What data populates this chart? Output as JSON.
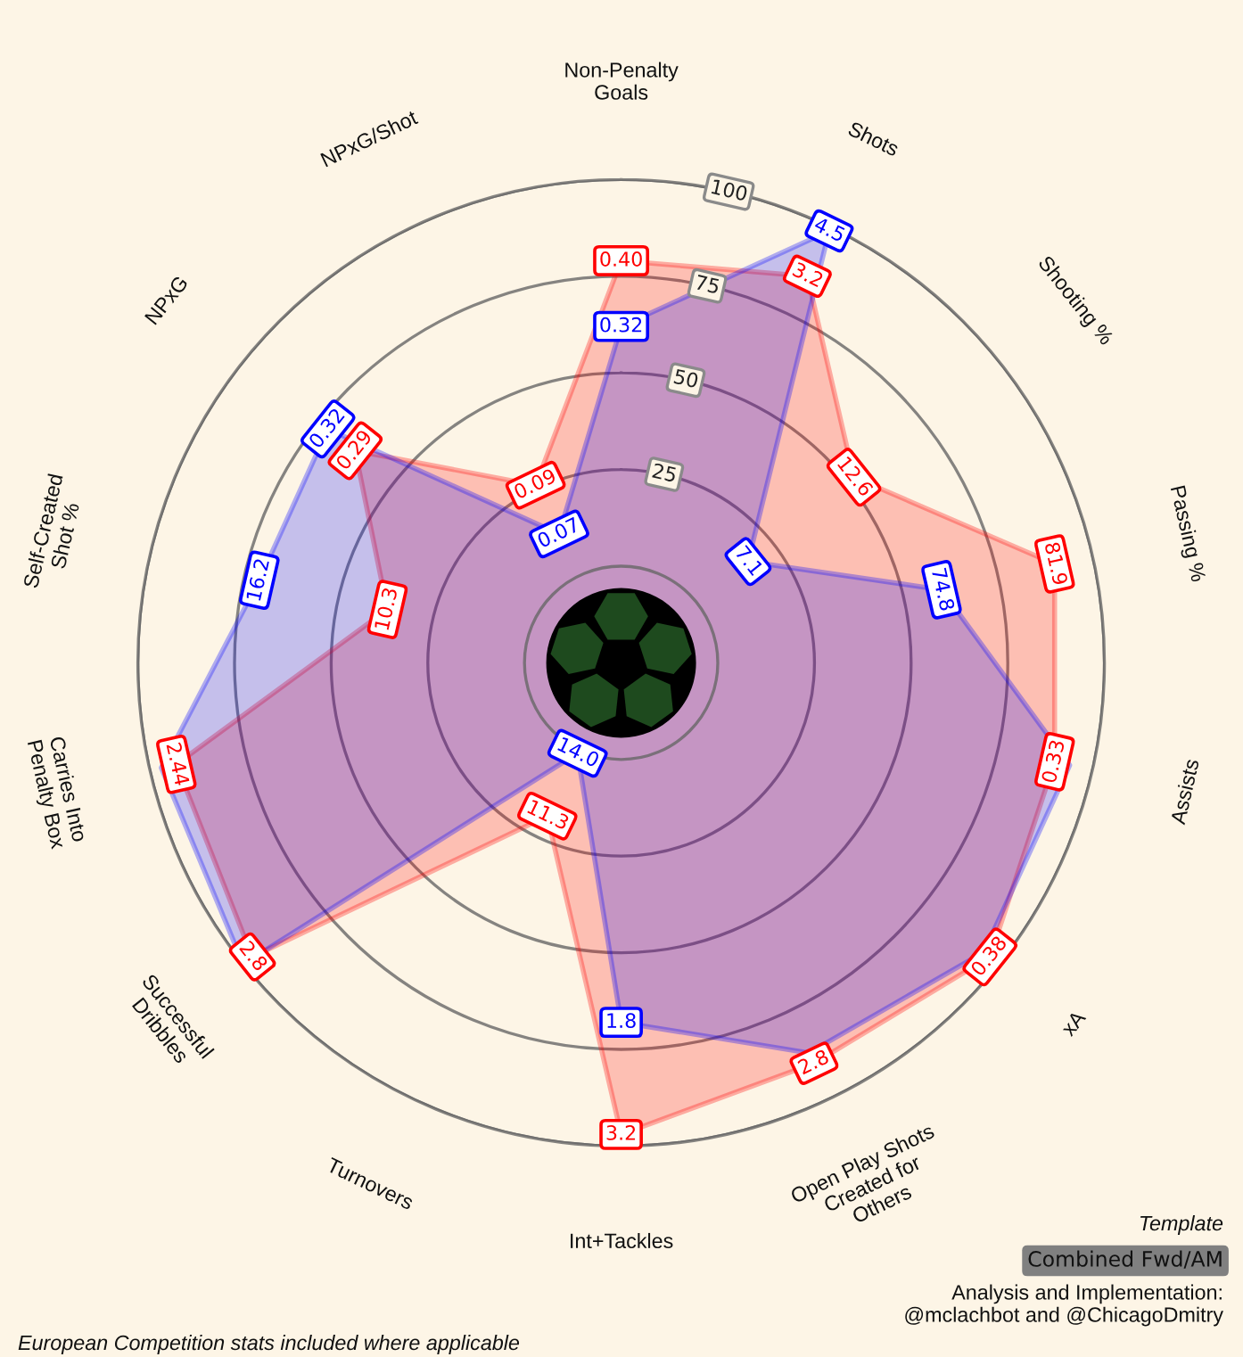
{
  "chart_data": {
    "type": "radar",
    "categories": [
      "Non-Penalty\nGoals",
      "Shots",
      "Shooting %",
      "Passing %",
      "Assists",
      "xA",
      "Open Play Shots\nCreated for\nOthers",
      "Int+Tackles",
      "Turnovers",
      "Successful\nDribbles",
      "Carries Into\nPenalty Box",
      "Self-Created\nShot %",
      "NPxG",
      "NPxG/Shot"
    ],
    "series": [
      {
        "color": "#ff0000",
        "values": [
          79,
          86,
          52,
          90,
          90,
          97,
          90,
          97,
          19,
          97,
          93,
          37,
          63,
          26
        ]
      },
      {
        "color": "#0000ff",
        "values": [
          62,
          99,
          17,
          60,
          94,
          95,
          87,
          68,
          1,
          100,
          97,
          71,
          72,
          12
        ]
      }
    ],
    "ylim": [
      -25,
      100
    ],
    "yticks": [
      25,
      50,
      75,
      100
    ],
    "grid": "y",
    "annotations": [
      {
        "text": "0.40",
        "x": "Non-Penalty\nGoals"
      },
      {
        "text": "3.2",
        "x": "Shots"
      },
      {
        "text": "12.6",
        "x": "Shooting %"
      },
      {
        "text": "81.9",
        "x": "Passing %"
      },
      {
        "text": "0.33",
        "x": "Assists"
      },
      {
        "text": "0.38",
        "x": "xA"
      },
      {
        "text": "2.8",
        "x": "Open Play Shots\nCreated for\nOthers"
      },
      {
        "text": "3.2",
        "x": "Int+Tackles"
      },
      {
        "text": "11.3",
        "x": "Turnovers"
      },
      {
        "text": "2.8",
        "x": "Successful\nDribbles"
      },
      {
        "text": "2.44",
        "x": "Carries Into\nPenalty Box"
      },
      {
        "text": "10.3",
        "x": "Self-Created\nShot %"
      },
      {
        "text": "0.29",
        "x": "NPxG"
      },
      {
        "text": "0.09",
        "x": "NPxG/Shot"
      },
      {
        "text": "0.32",
        "x": "Non-Penalty\nGoals"
      },
      {
        "text": "4.5",
        "x": "Shots"
      },
      {
        "text": "7.1",
        "x": "Shooting %"
      },
      {
        "text": "74.8",
        "x": "Passing %"
      },
      {
        "text": "1.8",
        "x": "Int+Tackles"
      },
      {
        "text": "14.0",
        "x": "Turnovers"
      },
      {
        "text": "16.2",
        "x": "Self-Created\nShot %"
      },
      {
        "text": "0.32",
        "x": "NPxG"
      },
      {
        "text": "0.07",
        "x": "NPxG/Shot"
      },
      "Template",
      "Combined Fwd/AM",
      "Analysis and Implementation:\n@mclachbot and @ChicagoDmitry",
      "European Competition stats included where applicable"
    ]
  }
}
